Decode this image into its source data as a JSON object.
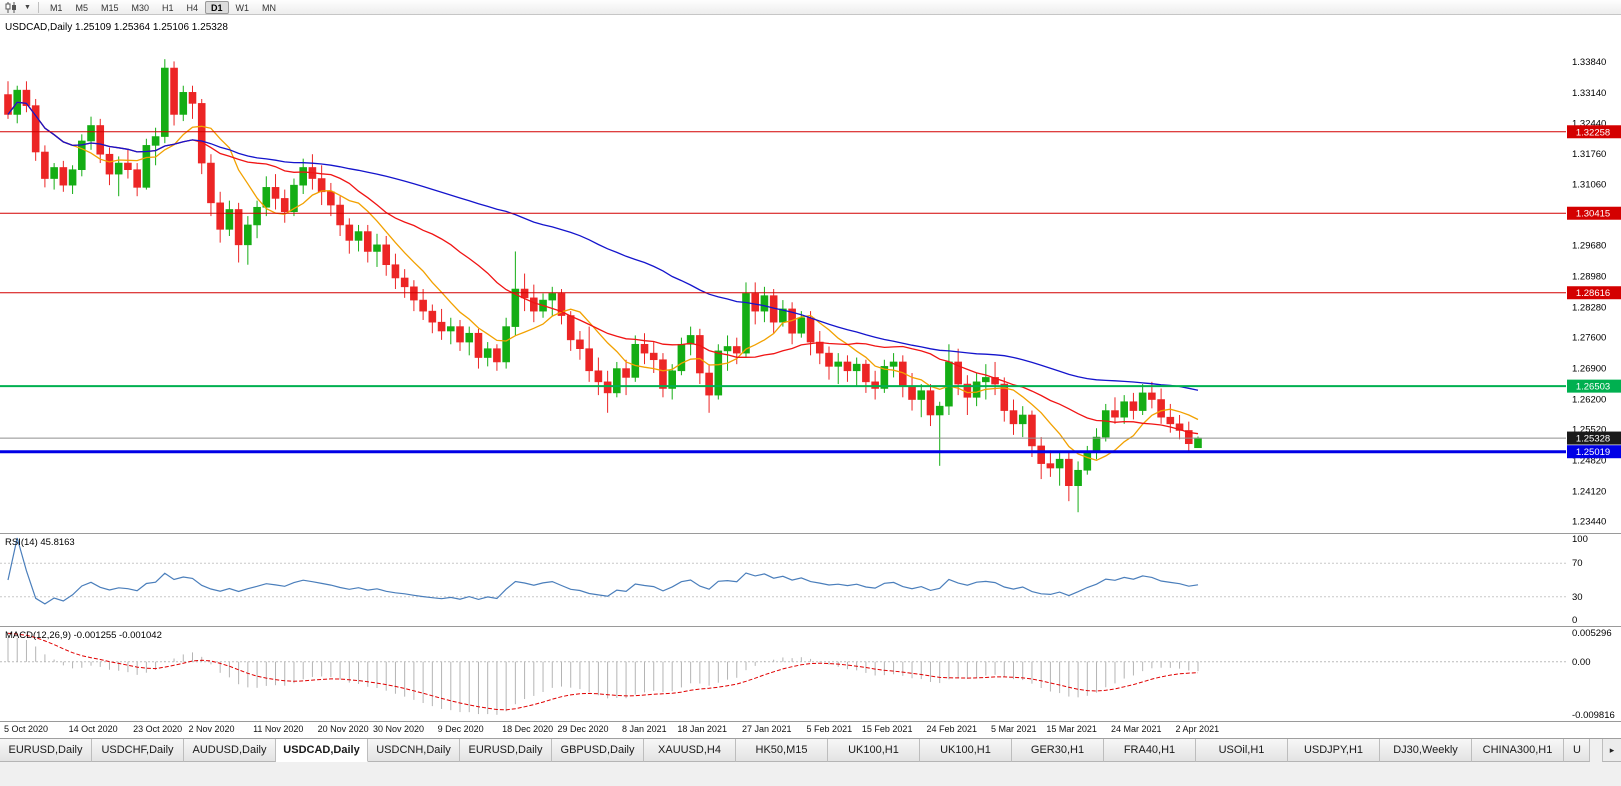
{
  "toolbar": {
    "timeframes": [
      "M1",
      "M5",
      "M15",
      "M30",
      "H1",
      "H4",
      "D1",
      "W1",
      "MN"
    ],
    "active_timeframe": "D1"
  },
  "chart": {
    "title": "USDCAD,Daily 1.25109 1.25364 1.25106 1.25328",
    "symbol": "USDCAD",
    "period": "Daily",
    "open": "1.25109",
    "high": "1.25364",
    "low": "1.25106",
    "close": "1.25328",
    "colors": {
      "bull": "#14ad14",
      "bear": "#ec2525",
      "background": "#ffffff"
    }
  },
  "chart_data": {
    "type": "candlestick",
    "symbol": "USDCAD",
    "timeframe": "Daily",
    "ylim": [
      1.2318,
      1.349
    ],
    "price_axis_labels": [
      "1.33840",
      "1.33140",
      "1.32440",
      "1.31760",
      "1.31060",
      "1.29680",
      "1.28980",
      "1.28280",
      "1.27600",
      "1.26900",
      "1.26200",
      "1.25520",
      "1.24820",
      "1.24120",
      "1.23440"
    ],
    "candles": [
      [
        1.331,
        1.334,
        1.3255,
        1.3265
      ],
      [
        1.3265,
        1.333,
        1.3245,
        1.332
      ],
      [
        1.332,
        1.334,
        1.327,
        1.3285
      ],
      [
        1.3285,
        1.33,
        1.316,
        1.318
      ],
      [
        1.318,
        1.3195,
        1.31,
        1.312
      ],
      [
        1.312,
        1.3155,
        1.3095,
        1.3145
      ],
      [
        1.3145,
        1.316,
        1.309,
        1.3105
      ],
      [
        1.3105,
        1.315,
        1.3085,
        1.314
      ],
      [
        1.314,
        1.322,
        1.3125,
        1.3205
      ],
      [
        1.3205,
        1.326,
        1.3185,
        1.324
      ],
      [
        1.324,
        1.3255,
        1.3155,
        1.3175
      ],
      [
        1.3175,
        1.319,
        1.3105,
        1.313
      ],
      [
        1.313,
        1.317,
        1.308,
        1.3155
      ],
      [
        1.3155,
        1.3185,
        1.312,
        1.314
      ],
      [
        1.314,
        1.3155,
        1.308,
        1.31
      ],
      [
        1.31,
        1.321,
        1.3095,
        1.3195
      ],
      [
        1.3195,
        1.3235,
        1.315,
        1.3215
      ],
      [
        1.3215,
        1.339,
        1.32,
        1.337
      ],
      [
        1.337,
        1.3385,
        1.324,
        1.3265
      ],
      [
        1.3265,
        1.333,
        1.325,
        1.3315
      ],
      [
        1.3315,
        1.333,
        1.3255,
        1.329
      ],
      [
        1.329,
        1.33,
        1.313,
        1.3155
      ],
      [
        1.3155,
        1.3175,
        1.3035,
        1.3065
      ],
      [
        1.3065,
        1.309,
        1.2975,
        1.3005
      ],
      [
        1.3005,
        1.307,
        1.299,
        1.305
      ],
      [
        1.305,
        1.3065,
        1.293,
        1.297
      ],
      [
        1.297,
        1.3035,
        1.2925,
        1.3015
      ],
      [
        1.3015,
        1.307,
        1.2985,
        1.3055
      ],
      [
        1.3055,
        1.3125,
        1.3035,
        1.31
      ],
      [
        1.31,
        1.313,
        1.305,
        1.3075
      ],
      [
        1.3075,
        1.3095,
        1.302,
        1.3045
      ],
      [
        1.3045,
        1.312,
        1.3035,
        1.3105
      ],
      [
        1.3105,
        1.3165,
        1.3085,
        1.3145
      ],
      [
        1.3145,
        1.3175,
        1.3095,
        1.312
      ],
      [
        1.312,
        1.315,
        1.306,
        1.309
      ],
      [
        1.309,
        1.311,
        1.3035,
        1.306
      ],
      [
        1.306,
        1.308,
        1.299,
        1.3015
      ],
      [
        1.3015,
        1.303,
        1.295,
        1.298
      ],
      [
        1.298,
        1.3015,
        1.2955,
        1.3
      ],
      [
        1.3,
        1.3015,
        1.293,
        1.2955
      ],
      [
        1.2955,
        1.2995,
        1.292,
        1.297
      ],
      [
        1.297,
        1.299,
        1.29,
        1.2925
      ],
      [
        1.2925,
        1.295,
        1.287,
        1.2895
      ],
      [
        1.2895,
        1.2915,
        1.285,
        1.2875
      ],
      [
        1.2875,
        1.289,
        1.282,
        1.2845
      ],
      [
        1.2845,
        1.287,
        1.28,
        1.282
      ],
      [
        1.282,
        1.2835,
        1.277,
        1.2795
      ],
      [
        1.2795,
        1.2825,
        1.2755,
        1.2775
      ],
      [
        1.2775,
        1.2805,
        1.2745,
        1.2785
      ],
      [
        1.2785,
        1.28,
        1.273,
        1.275
      ],
      [
        1.275,
        1.2785,
        1.272,
        1.277
      ],
      [
        1.277,
        1.278,
        1.269,
        1.2715
      ],
      [
        1.2715,
        1.275,
        1.2695,
        1.2735
      ],
      [
        1.2735,
        1.2745,
        1.2685,
        1.2705
      ],
      [
        1.2705,
        1.2805,
        1.269,
        1.2785
      ],
      [
        1.2785,
        1.2955,
        1.2765,
        1.287
      ],
      [
        1.287,
        1.2905,
        1.282,
        1.285
      ],
      [
        1.285,
        1.288,
        1.2795,
        1.282
      ],
      [
        1.282,
        1.286,
        1.2805,
        1.2845
      ],
      [
        1.2845,
        1.2875,
        1.281,
        1.286
      ],
      [
        1.286,
        1.287,
        1.279,
        1.281
      ],
      [
        1.281,
        1.282,
        1.273,
        1.2755
      ],
      [
        1.2755,
        1.2775,
        1.271,
        1.2735
      ],
      [
        1.2735,
        1.2785,
        1.266,
        1.2685
      ],
      [
        1.2685,
        1.2715,
        1.263,
        1.266
      ],
      [
        1.266,
        1.2685,
        1.259,
        1.2635
      ],
      [
        1.2635,
        1.2705,
        1.2625,
        1.269
      ],
      [
        1.269,
        1.271,
        1.263,
        1.267
      ],
      [
        1.267,
        1.2765,
        1.266,
        1.2745
      ],
      [
        1.2745,
        1.277,
        1.27,
        1.2725
      ],
      [
        1.2725,
        1.275,
        1.268,
        1.271
      ],
      [
        1.271,
        1.2725,
        1.2625,
        1.2645
      ],
      [
        1.2645,
        1.27,
        1.262,
        1.2685
      ],
      [
        1.2685,
        1.276,
        1.2675,
        1.2745
      ],
      [
        1.2745,
        1.2785,
        1.272,
        1.2765
      ],
      [
        1.2765,
        1.278,
        1.2655,
        1.268
      ],
      [
        1.268,
        1.27,
        1.259,
        1.263
      ],
      [
        1.263,
        1.2745,
        1.262,
        1.273
      ],
      [
        1.273,
        1.2765,
        1.2685,
        1.274
      ],
      [
        1.274,
        1.276,
        1.27,
        1.2725
      ],
      [
        1.2725,
        1.2885,
        1.2715,
        1.286
      ],
      [
        1.286,
        1.2885,
        1.279,
        1.282
      ],
      [
        1.282,
        1.2875,
        1.2795,
        1.2855
      ],
      [
        1.2855,
        1.287,
        1.277,
        1.2795
      ],
      [
        1.2795,
        1.2845,
        1.2785,
        1.2825
      ],
      [
        1.2825,
        1.284,
        1.2745,
        1.277
      ],
      [
        1.277,
        1.282,
        1.276,
        1.2805
      ],
      [
        1.2805,
        1.282,
        1.272,
        1.275
      ],
      [
        1.275,
        1.2775,
        1.27,
        1.2725
      ],
      [
        1.2725,
        1.274,
        1.2665,
        1.2695
      ],
      [
        1.2695,
        1.2725,
        1.2655,
        1.2705
      ],
      [
        1.2705,
        1.272,
        1.266,
        1.2685
      ],
      [
        1.2685,
        1.2715,
        1.265,
        1.27
      ],
      [
        1.27,
        1.271,
        1.2635,
        1.266
      ],
      [
        1.266,
        1.2685,
        1.262,
        1.2645
      ],
      [
        1.2645,
        1.271,
        1.2635,
        1.2695
      ],
      [
        1.2695,
        1.2725,
        1.267,
        1.2705
      ],
      [
        1.2705,
        1.272,
        1.2625,
        1.265
      ],
      [
        1.265,
        1.268,
        1.2595,
        1.262
      ],
      [
        1.262,
        1.2655,
        1.258,
        1.264
      ],
      [
        1.264,
        1.2655,
        1.256,
        1.2585
      ],
      [
        1.2585,
        1.2615,
        1.247,
        1.2605
      ],
      [
        1.2605,
        1.2745,
        1.2585,
        1.2705
      ],
      [
        1.2705,
        1.2735,
        1.263,
        1.2655
      ],
      [
        1.2655,
        1.2675,
        1.2585,
        1.2625
      ],
      [
        1.2625,
        1.268,
        1.2605,
        1.266
      ],
      [
        1.266,
        1.27,
        1.262,
        1.267
      ],
      [
        1.267,
        1.2705,
        1.263,
        1.2655
      ],
      [
        1.2655,
        1.267,
        1.257,
        1.2595
      ],
      [
        1.2595,
        1.262,
        1.254,
        1.2565
      ],
      [
        1.2565,
        1.2605,
        1.2535,
        1.2585
      ],
      [
        1.2585,
        1.2595,
        1.249,
        1.2515
      ],
      [
        1.2515,
        1.2535,
        1.244,
        1.2475
      ],
      [
        1.2475,
        1.2505,
        1.2445,
        1.2465
      ],
      [
        1.2465,
        1.25,
        1.2425,
        1.2485
      ],
      [
        1.2485,
        1.25,
        1.239,
        1.2425
      ],
      [
        1.2425,
        1.248,
        1.2365,
        1.246
      ],
      [
        1.246,
        1.2515,
        1.245,
        1.25
      ],
      [
        1.25,
        1.2555,
        1.2485,
        1.2535
      ],
      [
        1.2535,
        1.261,
        1.2525,
        1.2595
      ],
      [
        1.2595,
        1.2625,
        1.2565,
        1.258
      ],
      [
        1.258,
        1.263,
        1.2565,
        1.2615
      ],
      [
        1.2615,
        1.2635,
        1.2575,
        1.2595
      ],
      [
        1.2595,
        1.2655,
        1.2585,
        1.2635
      ],
      [
        1.2635,
        1.266,
        1.26,
        1.262
      ],
      [
        1.262,
        1.2645,
        1.2565,
        1.258
      ],
      [
        1.258,
        1.261,
        1.2545,
        1.2565
      ],
      [
        1.2565,
        1.2585,
        1.253,
        1.255
      ],
      [
        1.255,
        1.257,
        1.25,
        1.252
      ],
      [
        1.25109,
        1.25364,
        1.25106,
        1.25328
      ]
    ],
    "date_labels": [
      {
        "t": "5 Oct 2020",
        "i": 0
      },
      {
        "t": "14 Oct 2020",
        "i": 7
      },
      {
        "t": "23 Oct 2020",
        "i": 14
      },
      {
        "t": "2 Nov 2020",
        "i": 20
      },
      {
        "t": "11 Nov 2020",
        "i": 27
      },
      {
        "t": "20 Nov 2020",
        "i": 34
      },
      {
        "t": "30 Nov 2020",
        "i": 40
      },
      {
        "t": "9 Dec 2020",
        "i": 47
      },
      {
        "t": "18 Dec 2020",
        "i": 54
      },
      {
        "t": "29 Dec 2020",
        "i": 60
      },
      {
        "t": "8 Jan 2021",
        "i": 67
      },
      {
        "t": "18 Jan 2021",
        "i": 73
      },
      {
        "t": "27 Jan 2021",
        "i": 80
      },
      {
        "t": "5 Feb 2021",
        "i": 87
      },
      {
        "t": "15 Feb 2021",
        "i": 93
      },
      {
        "t": "24 Feb 2021",
        "i": 100
      },
      {
        "t": "5 Mar 2021",
        "i": 107
      },
      {
        "t": "15 Mar 2021",
        "i": 113
      },
      {
        "t": "24 Mar 2021",
        "i": 120
      },
      {
        "t": "2 Apr 2021",
        "i": 127
      }
    ],
    "moving_averages": [
      {
        "name": "fast-ma",
        "period": 8,
        "color": "#f2a100"
      },
      {
        "name": "mid-ma",
        "period": 21,
        "color": "#f01414"
      },
      {
        "name": "slow-ma",
        "period": 55,
        "color": "#1414cc"
      }
    ],
    "horizontal_lines": [
      {
        "price": 1.32258,
        "label": "1.32258",
        "color": "#d40000",
        "width": 1
      },
      {
        "price": 1.30415,
        "label": "1.30415",
        "color": "#d40000",
        "width": 1
      },
      {
        "price": 1.28616,
        "label": "1.28616",
        "color": "#d40000",
        "width": 1
      },
      {
        "price": 1.26503,
        "label": "1.26503",
        "color": "#00b050",
        "width": 2
      },
      {
        "price": 1.25019,
        "label": "1.25019",
        "color": "#0000e6",
        "width": 3
      }
    ],
    "current_price": {
      "price": 1.25328,
      "label": "1.25328",
      "line_color": "#8f8f8f",
      "badge_color": "#1a1a1a"
    }
  },
  "rsi": {
    "label": "RSI(14) 45.8163",
    "period": 14,
    "current_value": 45.8163,
    "axis_labels": [
      "100",
      "70",
      "30",
      "0"
    ],
    "levels": [
      70,
      30
    ],
    "line_color": "#4a7ebb"
  },
  "macd": {
    "label": "MACD(12,26,9) -0.001255 -0.001042",
    "fast": 12,
    "slow": 26,
    "signal": 9,
    "macd_value": -0.001255,
    "signal_value": -0.001042,
    "axis_top": "0.005296",
    "axis_zero": "0.00",
    "axis_bottom": "-0.009816",
    "histogram_color": "#b4b4b4",
    "signal_color": "#e00000"
  },
  "tabs": {
    "items": [
      {
        "label": "EURUSD,Daily"
      },
      {
        "label": "USDCHF,Daily"
      },
      {
        "label": "AUDUSD,Daily"
      },
      {
        "label": "USDCAD,Daily",
        "active": true
      },
      {
        "label": "USDCNH,Daily"
      },
      {
        "label": "EURUSD,Daily"
      },
      {
        "label": "GBPUSD,Daily"
      },
      {
        "label": "XAUUSD,H4"
      },
      {
        "label": "HK50,M15"
      },
      {
        "label": "UK100,H1"
      },
      {
        "label": "UK100,H1"
      },
      {
        "label": "GER30,H1"
      },
      {
        "label": "FRA40,H1"
      },
      {
        "label": "USOil,H1"
      },
      {
        "label": "USDJPY,H1"
      },
      {
        "label": "DJ30,Weekly"
      },
      {
        "label": "CHINA300,H1"
      },
      {
        "label": "U",
        "partial": true
      }
    ],
    "scroll_right": "▸"
  }
}
